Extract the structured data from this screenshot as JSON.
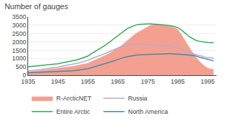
{
  "chart_data": {
    "type": "line",
    "title": "Number of gauges",
    "x": [
      1935,
      1936,
      1937,
      1938,
      1939,
      1940,
      1941,
      1942,
      1943,
      1944,
      1945,
      1946,
      1947,
      1948,
      1949,
      1950,
      1951,
      1952,
      1953,
      1954,
      1955,
      1956,
      1957,
      1958,
      1959,
      1960,
      1961,
      1962,
      1963,
      1964,
      1965,
      1966,
      1967,
      1968,
      1969,
      1970,
      1971,
      1972,
      1973,
      1974,
      1975,
      1976,
      1977,
      1978,
      1979,
      1980,
      1981,
      1982,
      1983,
      1984,
      1985,
      1986,
      1987,
      1988,
      1989,
      1990,
      1991,
      1992,
      1993,
      1994,
      1995,
      1996,
      1997
    ],
    "series": [
      {
        "name": "R-ArcticNET",
        "type": "area",
        "color": "#f4a090",
        "values": [
          200,
          220,
          250,
          270,
          290,
          310,
          330,
          350,
          360,
          380,
          400,
          450,
          470,
          490,
          510,
          530,
          570,
          600,
          640,
          680,
          720,
          800,
          880,
          950,
          1020,
          1100,
          1200,
          1300,
          1400,
          1500,
          1620,
          1750,
          1900,
          2050,
          2200,
          2350,
          2500,
          2600,
          2700,
          2800,
          2900,
          3000,
          3050,
          3080,
          3050,
          3020,
          2980,
          2950,
          2900,
          2850,
          2750,
          2500,
          2200,
          1900,
          1600,
          1350,
          1100,
          900,
          700,
          550,
          420,
          380,
          340
        ]
      },
      {
        "name": "Russia",
        "type": "line",
        "color": "#b8a8d0",
        "values": [
          250,
          270,
          290,
          310,
          330,
          360,
          380,
          400,
          420,
          450,
          480,
          530,
          560,
          590,
          620,
          650,
          700,
          740,
          790,
          840,
          890,
          980,
          1060,
          1120,
          1180,
          1240,
          1320,
          1400,
          1480,
          1560,
          1650,
          1720,
          1780,
          1820,
          1850,
          1870,
          1880,
          1880,
          1870,
          1860,
          1860,
          1860,
          1840,
          1820,
          1800,
          1780,
          1760,
          1740,
          1720,
          1700,
          1680,
          1600,
          1500,
          1400,
          1350,
          1300,
          1250,
          1200,
          1150,
          1100,
          1050,
          1050,
          1020
        ]
      },
      {
        "name": "Entire Arctic",
        "type": "line",
        "color": "#33aa55",
        "values": [
          510,
          525,
          540,
          555,
          570,
          590,
          610,
          630,
          645,
          665,
          690,
          730,
          760,
          790,
          820,
          860,
          910,
          960,
          1020,
          1080,
          1150,
          1270,
          1380,
          1480,
          1580,
          1680,
          1820,
          1960,
          2100,
          2230,
          2380,
          2520,
          2660,
          2780,
          2870,
          2950,
          3010,
          3050,
          3070,
          3080,
          3080,
          3080,
          3070,
          3060,
          3040,
          3020,
          3000,
          2980,
          2950,
          2920,
          2850,
          2750,
          2600,
          2450,
          2300,
          2200,
          2100,
          2050,
          2000,
          1980,
          1960,
          1960,
          1950
        ]
      },
      {
        "name": "North America",
        "type": "line",
        "color": "#4488aa",
        "values": [
          150,
          155,
          160,
          165,
          170,
          175,
          180,
          185,
          190,
          200,
          210,
          220,
          230,
          240,
          250,
          260,
          280,
          300,
          330,
          360,
          390,
          440,
          490,
          540,
          590,
          640,
          700,
          760,
          820,
          880,
          950,
          1010,
          1060,
          1110,
          1150,
          1180,
          1200,
          1220,
          1230,
          1240,
          1250,
          1260,
          1270,
          1280,
          1290,
          1290,
          1290,
          1290,
          1290,
          1280,
          1280,
          1260,
          1240,
          1220,
          1200,
          1180,
          1160,
          1100,
          1050,
          1000,
          950,
          900,
          860
        ]
      }
    ],
    "xlim": [
      1935,
      1998
    ],
    "xticks": [
      1935,
      1945,
      1955,
      1965,
      1975,
      1985,
      1995
    ],
    "ylim": [
      0,
      3500
    ],
    "yticks": [
      0,
      500,
      1000,
      1500,
      2000,
      2500,
      3000,
      3500
    ],
    "grid": true,
    "legend": "bottom"
  }
}
